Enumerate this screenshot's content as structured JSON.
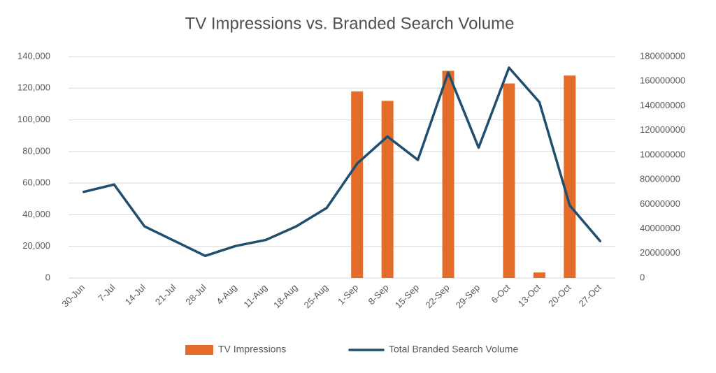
{
  "chart_data": {
    "type": "combo",
    "title": "TV Impressions vs. Branded Search Volume",
    "categories": [
      "30-Jun",
      "7-Jul",
      "14-Jul",
      "21-Jul",
      "28-Jul",
      "4-Aug",
      "11-Aug",
      "18-Aug",
      "25-Aug",
      "1-Sep",
      "8-Sep",
      "15-Sep",
      "22-Sep",
      "29-Sep",
      "6-Oct",
      "13-Oct",
      "20-Oct",
      "27-Oct"
    ],
    "series": [
      {
        "name": "TV Impressions",
        "type": "bar",
        "axis": "y",
        "color": "#e46c2a",
        "values": [
          null,
          null,
          null,
          null,
          null,
          null,
          null,
          null,
          null,
          118000,
          112000,
          null,
          131000,
          null,
          123000,
          3500,
          128000,
          null
        ]
      },
      {
        "name": "Total Branded Search Volume",
        "type": "line",
        "axis": "y2",
        "color": "#1f4e6e",
        "values": [
          70000000,
          76000000,
          42000000,
          30000000,
          18000000,
          26000000,
          31000000,
          42000000,
          57000000,
          93000000,
          115000000,
          96000000,
          167000000,
          106000000,
          171000000,
          143000000,
          59000000,
          30000000
        ]
      }
    ],
    "ylim": [
      0,
      140000
    ],
    "yticks": [
      0,
      {
        "value": 20000,
        "label": "20,000"
      },
      {
        "value": 40000,
        "label": "40,000"
      },
      {
        "value": 60000,
        "label": "60,000"
      },
      {
        "value": 80000,
        "label": "80,000"
      },
      {
        "value": 100000,
        "label": "100,000"
      },
      {
        "value": 120000,
        "label": "120,000"
      },
      {
        "value": 140000,
        "label": "140,000"
      }
    ],
    "y2lim": [
      0,
      180000000
    ],
    "y2ticks": [
      0,
      20000000,
      40000000,
      60000000,
      80000000,
      100000000,
      120000000,
      140000000,
      160000000,
      180000000
    ],
    "grid": true,
    "legend": "bottom"
  }
}
